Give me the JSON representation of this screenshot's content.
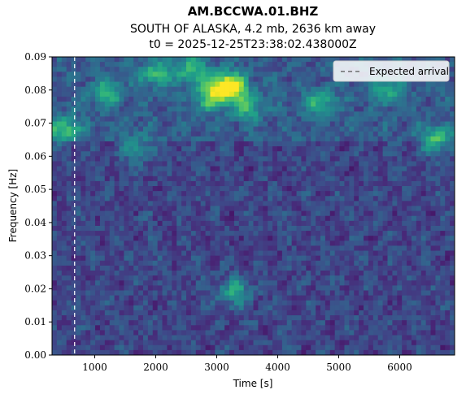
{
  "chart_data": {
    "type": "heatmap",
    "title": "AM.BCCWA.01.BHZ",
    "subtitle": "SOUTH OF ALASKA, 4.2 mb, 2636 km away",
    "subtitle2": "t0 = 2025-12-25T23:38:02.438000Z",
    "xlabel": "Time [s]",
    "ylabel": "Frequency [Hz]",
    "xlim": [
      300,
      6900
    ],
    "ylim": [
      0.0,
      0.09
    ],
    "xticks": [
      1000,
      2000,
      3000,
      4000,
      5000,
      6000
    ],
    "yticks": [
      "0.00",
      "0.01",
      "0.02",
      "0.03",
      "0.04",
      "0.05",
      "0.06",
      "0.07",
      "0.08",
      "0.09"
    ],
    "colormap": "viridis",
    "expected_arrival_time": 670,
    "legend": {
      "label": "Expected arrival",
      "position": "top-right"
    },
    "bright_features": [
      {
        "time": 3200,
        "frequency": 0.081,
        "intensity": 1.0
      },
      {
        "time": 2900,
        "frequency": 0.078,
        "intensity": 0.55
      },
      {
        "time": 3500,
        "frequency": 0.075,
        "intensity": 0.45
      },
      {
        "time": 1200,
        "frequency": 0.079,
        "intensity": 0.45
      },
      {
        "time": 2000,
        "frequency": 0.085,
        "intensity": 0.45
      },
      {
        "time": 2600,
        "frequency": 0.086,
        "intensity": 0.45
      },
      {
        "time": 500,
        "frequency": 0.068,
        "intensity": 0.5
      },
      {
        "time": 6600,
        "frequency": 0.065,
        "intensity": 0.5
      },
      {
        "time": 3300,
        "frequency": 0.019,
        "intensity": 0.45
      },
      {
        "time": 1700,
        "frequency": 0.062,
        "intensity": 0.35
      },
      {
        "time": 4700,
        "frequency": 0.076,
        "intensity": 0.4
      },
      {
        "time": 5800,
        "frequency": 0.08,
        "intensity": 0.35
      }
    ],
    "colors": {
      "background": "#440154",
      "accent_low": "#3b528b",
      "accent_mid": "#21918c",
      "accent_high": "#5ec962",
      "peak": "#fde725"
    }
  }
}
